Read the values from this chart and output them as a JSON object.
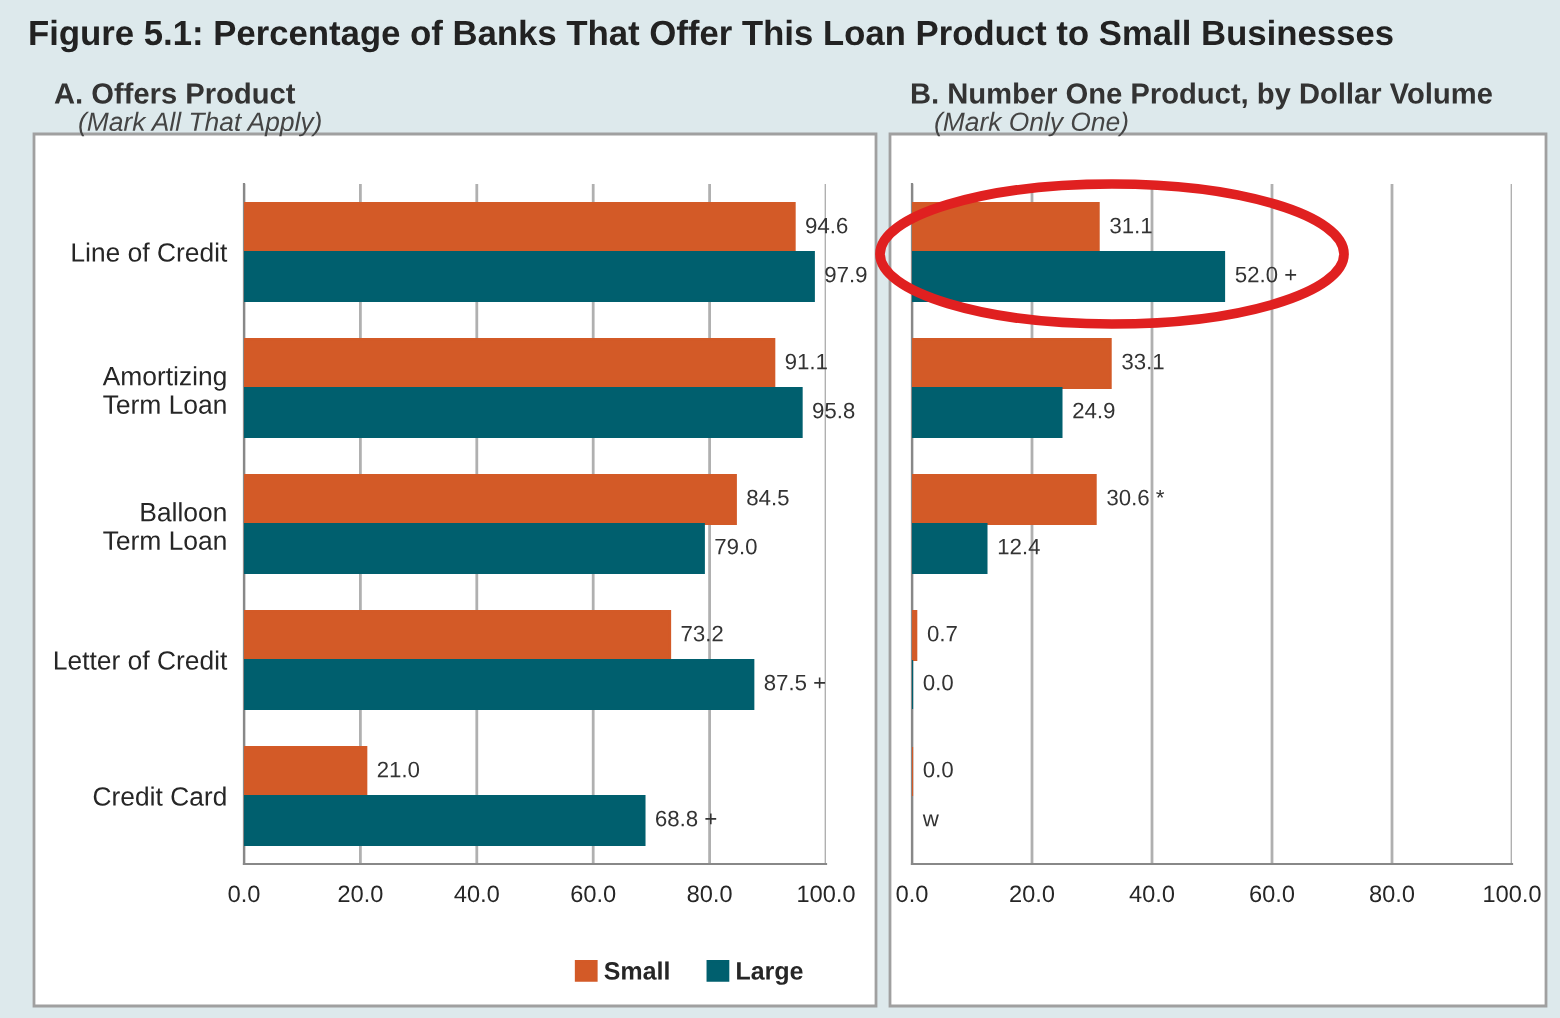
{
  "chart_data": [
    {
      "type": "bar",
      "orientation": "horizontal",
      "title": "A. Offers Product",
      "subtitle": "(Mark All That Apply)",
      "annotations": [
        "Figure 5.1: Percentage of Banks That Offer This Loan Product to Small Businesses"
      ],
      "categories": [
        "Line of Credit",
        "Amortizing\nTerm Loan",
        "Balloon\nTerm Loan",
        "Letter of Credit",
        "Credit Card"
      ],
      "series": [
        {
          "name": "Small",
          "color": "#d35a27",
          "values": [
            94.6,
            91.1,
            84.5,
            73.2,
            21.0
          ],
          "value_labels": [
            "94.6",
            "91.1",
            "84.5",
            "73.2",
            "21.0"
          ]
        },
        {
          "name": "Large",
          "color": "#005f6e",
          "values": [
            97.9,
            95.8,
            79.0,
            87.5,
            68.8
          ],
          "value_labels": [
            "97.9",
            "95.8",
            "79.0",
            "87.5 +",
            "68.8 +"
          ]
        }
      ],
      "xlim": [
        0,
        100
      ],
      "xticks": [
        {
          "value": 0,
          "label": "0.0"
        },
        {
          "value": 20,
          "label": "20.0"
        },
        {
          "value": 40,
          "label": "40.0"
        },
        {
          "value": 60,
          "label": "60.0"
        },
        {
          "value": 80,
          "label": "80.0"
        },
        {
          "value": 100,
          "label": "100.0"
        }
      ],
      "grid": "x",
      "legend": "bottom right"
    },
    {
      "type": "bar",
      "orientation": "horizontal",
      "title": "B. Number One Product, by Dollar Volume",
      "subtitle": "(Mark Only One)",
      "categories": [
        null,
        null,
        null,
        null,
        null
      ],
      "series": [
        {
          "color": "#d35a27",
          "values": [
            31.1,
            33.1,
            30.6,
            0.7,
            0.0
          ],
          "value_labels": [
            "31.1",
            "33.1",
            "30.6 *",
            "0.7",
            "0.0"
          ]
        },
        {
          "color": "#005f6e",
          "values": [
            52.0,
            24.9,
            12.4,
            0.0,
            null
          ],
          "value_labels": [
            "52.0 +",
            "24.9",
            "12.4",
            "0.0",
            "w"
          ]
        }
      ],
      "xlim": [
        0,
        100
      ],
      "xticks": [
        {
          "value": 0,
          "label": "0.0"
        },
        {
          "value": 20,
          "label": "20.0"
        },
        {
          "value": 40,
          "label": "40.0"
        },
        {
          "value": 60,
          "label": "60.0"
        },
        {
          "value": 80,
          "label": "80.0"
        },
        {
          "value": 100,
          "label": "100.0"
        }
      ],
      "grid": "x",
      "tick_labels": "x"
    }
  ]
}
